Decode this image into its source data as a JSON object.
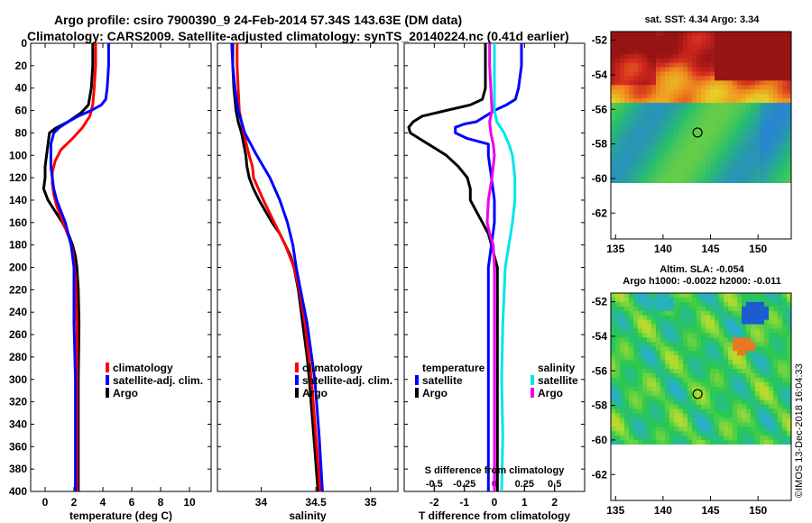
{
  "header": {
    "title_line1": "Argo profile: csiro 7900390_9 24-Feb-2014 57.34S 143.63E (DM data)",
    "title_line2": "Climatology: CARS2009. Satellite-adjusted climatology: synTS_20140224.nc (0.41d earlier)"
  },
  "credit": "©IMOS 13-Dec-2018 16:04:33",
  "colors": {
    "argo": "#000000",
    "climatology": "#ff0000",
    "satellite": "#0000ff",
    "salinity_satellite": "#00e5ee",
    "salinity_argo": "#ee00ee"
  },
  "chart_data": [
    {
      "type": "line",
      "panel": "temperature",
      "xlabel": "temperature (deg C)",
      "ylabel": "",
      "xlim": [
        -1,
        11.5
      ],
      "ylim": [
        400,
        0
      ],
      "xticks": [
        "0",
        "2",
        "4",
        "6",
        "8",
        "10"
      ],
      "xtick_values": [
        0,
        2,
        4,
        6,
        8,
        10
      ],
      "yticks": [
        "0",
        "20",
        "40",
        "60",
        "80",
        "100",
        "120",
        "140",
        "160",
        "180",
        "200",
        "220",
        "240",
        "260",
        "280",
        "300",
        "320",
        "340",
        "360",
        "380",
        "400"
      ],
      "ytick_values": [
        0,
        20,
        40,
        60,
        80,
        100,
        120,
        140,
        160,
        180,
        200,
        220,
        240,
        260,
        280,
        300,
        320,
        340,
        360,
        380,
        400
      ],
      "legend": [
        "climatology",
        "satellite-adj. clim.",
        "Argo"
      ],
      "legend_position": "right-middle",
      "series": [
        {
          "name": "Argo",
          "depth": [
            0,
            20,
            40,
            55,
            62,
            70,
            76,
            80,
            90,
            100,
            110,
            120,
            130,
            140,
            150,
            160,
            170,
            180,
            190,
            200,
            220,
            250,
            300,
            350,
            400
          ],
          "values": [
            3.3,
            3.3,
            3.2,
            3.0,
            2.5,
            1.6,
            0.7,
            0.3,
            0.2,
            0.1,
            0.0,
            0.0,
            -0.1,
            0.2,
            0.7,
            1.2,
            1.6,
            1.9,
            2.1,
            2.2,
            2.3,
            2.35,
            2.3,
            2.3,
            2.3
          ]
        },
        {
          "name": "climatology",
          "depth": [
            0,
            20,
            40,
            55,
            65,
            75,
            85,
            95,
            105,
            115,
            125,
            135,
            145,
            155,
            165,
            175,
            185,
            195,
            210,
            250,
            300,
            350,
            400
          ],
          "values": [
            3.5,
            3.5,
            3.4,
            3.3,
            3.1,
            2.6,
            1.9,
            1.1,
            0.7,
            0.5,
            0.5,
            0.6,
            0.8,
            1.1,
            1.4,
            1.7,
            1.9,
            2.0,
            2.1,
            2.2,
            2.2,
            2.2,
            2.2
          ]
        },
        {
          "name": "satellite-adj. clim.",
          "depth": [
            0,
            20,
            40,
            50,
            55,
            60,
            65,
            70,
            75,
            80,
            90,
            100,
            110,
            120,
            130,
            140,
            150,
            160,
            170,
            180,
            190,
            200,
            250,
            300,
            350,
            400
          ],
          "values": [
            4.4,
            4.4,
            4.3,
            4.2,
            3.9,
            3.2,
            2.3,
            1.6,
            1.0,
            0.6,
            0.4,
            0.4,
            0.4,
            0.5,
            0.6,
            0.8,
            1.1,
            1.4,
            1.6,
            1.8,
            1.9,
            2.0,
            2.0,
            2.1,
            2.1,
            2.1
          ]
        }
      ]
    },
    {
      "type": "line",
      "panel": "salinity",
      "xlabel": "salinity",
      "ylabel": "",
      "xlim": [
        33.6,
        35.25
      ],
      "ylim": [
        400,
        0
      ],
      "xticks": [
        "34",
        "34.5",
        "35"
      ],
      "xtick_values": [
        34,
        34.5,
        35
      ],
      "legend": [
        "climatology",
        "satellite-adj. clim.",
        "Argo"
      ],
      "legend_position": "right-middle",
      "series": [
        {
          "name": "Argo",
          "depth": [
            0,
            20,
            40,
            60,
            70,
            80,
            90,
            100,
            110,
            120,
            130,
            140,
            150,
            160,
            170,
            180,
            190,
            200,
            220,
            250,
            280,
            300,
            350,
            400
          ],
          "values": [
            33.74,
            33.74,
            33.75,
            33.77,
            33.79,
            33.82,
            33.84,
            33.86,
            33.87,
            33.89,
            33.93,
            33.98,
            34.04,
            34.1,
            34.17,
            34.22,
            34.27,
            34.3,
            34.34,
            34.38,
            34.42,
            34.44,
            34.48,
            34.52
          ]
        },
        {
          "name": "climatology",
          "depth": [
            0,
            20,
            40,
            60,
            80,
            100,
            110,
            120,
            140,
            160,
            180,
            200,
            220,
            250,
            300,
            350,
            400
          ],
          "values": [
            33.78,
            33.78,
            33.79,
            33.8,
            33.84,
            33.89,
            33.92,
            33.93,
            34.02,
            34.12,
            34.22,
            34.3,
            34.35,
            34.4,
            34.46,
            34.5,
            34.54
          ]
        },
        {
          "name": "satellite-adj. clim.",
          "depth": [
            0,
            20,
            40,
            60,
            80,
            100,
            110,
            120,
            140,
            160,
            180,
            200,
            220,
            250,
            300,
            350,
            400
          ],
          "values": [
            33.73,
            33.74,
            33.76,
            33.79,
            33.85,
            33.96,
            34.02,
            34.08,
            34.17,
            34.24,
            34.29,
            34.32,
            34.36,
            34.42,
            34.49,
            34.53,
            34.56
          ]
        }
      ]
    },
    {
      "type": "line",
      "panel": "difference",
      "xlabel": "T difference from climatology",
      "secondary_xlabel": "S difference from climatology",
      "xlim": [
        -3,
        3
      ],
      "ylim": [
        400,
        0
      ],
      "xticks": [
        "-2",
        "-1",
        "0",
        "1",
        "2"
      ],
      "xtick_values": [
        -2,
        -1,
        0,
        1,
        2
      ],
      "secondary_xticks": [
        "-0.5",
        "-0.25",
        "0",
        "0.25",
        "0.5"
      ],
      "secondary_xtick_values": [
        -0.5,
        -0.25,
        0,
        0.25,
        0.5
      ],
      "legend_temperature_title": "temperature",
      "legend_salinity_title": "salinity",
      "legend_temperature": [
        "satellite",
        "Argo"
      ],
      "legend_salinity": [
        "satellite",
        "Argo"
      ],
      "series": [
        {
          "name": "temperature Argo",
          "depth": [
            0,
            20,
            40,
            50,
            55,
            60,
            65,
            70,
            75,
            80,
            85,
            90,
            95,
            100,
            110,
            120,
            130,
            140,
            150,
            160,
            170,
            180,
            190,
            200,
            250,
            300,
            350,
            400
          ],
          "values": [
            -0.3,
            -0.3,
            -0.3,
            -0.4,
            -0.8,
            -1.6,
            -2.4,
            -2.7,
            -2.85,
            -2.8,
            -2.5,
            -2.2,
            -1.9,
            -1.6,
            -1.2,
            -0.9,
            -0.8,
            -0.8,
            -0.6,
            -0.4,
            -0.2,
            -0.1,
            0.0,
            0.1,
            0.1,
            0.1,
            0.1,
            0.1
          ]
        },
        {
          "name": "temperature satellite",
          "depth": [
            0,
            20,
            40,
            50,
            55,
            60,
            65,
            70,
            72,
            75,
            80,
            85,
            90,
            100,
            120,
            140,
            160,
            180,
            200,
            250,
            300,
            350,
            400
          ],
          "values": [
            0.9,
            0.9,
            0.8,
            0.7,
            0.4,
            0.0,
            -0.3,
            -0.6,
            -1.0,
            -1.3,
            -1.3,
            -0.9,
            -0.2,
            -0.2,
            -0.1,
            0.0,
            0.0,
            -0.1,
            -0.2,
            -0.2,
            -0.2,
            -0.2,
            -0.2
          ]
        },
        {
          "name": "salinity satellite",
          "depth": [
            0,
            20,
            40,
            60,
            70,
            80,
            90,
            100,
            120,
            140,
            160,
            180,
            200,
            250,
            300,
            350,
            400
          ],
          "values": [
            0.0,
            0.0,
            0.0,
            0.0,
            0.02,
            0.08,
            0.12,
            0.15,
            0.17,
            0.17,
            0.15,
            0.12,
            0.09,
            0.07,
            0.06,
            0.07,
            0.06
          ]
        },
        {
          "name": "salinity Argo",
          "depth": [
            0,
            20,
            40,
            60,
            70,
            80,
            90,
            100,
            120,
            140,
            160,
            170,
            180,
            200,
            250,
            300,
            350,
            400
          ],
          "values": [
            -0.04,
            -0.04,
            -0.03,
            -0.02,
            -0.04,
            -0.03,
            -0.01,
            0.0,
            -0.02,
            -0.05,
            -0.06,
            -0.04,
            -0.01,
            0.0,
            0.0,
            0.0,
            0.0,
            0.0
          ]
        }
      ]
    },
    {
      "type": "heatmap",
      "panel": "map-sst",
      "title": "sat. SST: 4.34 Argo: 3.34",
      "xlim": [
        134.5,
        153.5
      ],
      "ylim": [
        -63.5,
        -51.5
      ],
      "xticks": [
        "135",
        "140",
        "145",
        "150"
      ],
      "xtick_values": [
        135,
        140,
        145,
        150
      ],
      "yticks": [
        "-52",
        "-54",
        "-56",
        "-58",
        "-60",
        "-62"
      ],
      "ytick_values": [
        -52,
        -54,
        -56,
        -58,
        -60,
        -62
      ],
      "float_position": {
        "lon": 143.63,
        "lat": -57.34
      }
    },
    {
      "type": "heatmap",
      "panel": "map-sla",
      "title": "Altim. SLA: -0.054",
      "subtitle": "Argo h1000: -0.0022 h2000: -0.011",
      "xlim": [
        134.5,
        153.5
      ],
      "ylim": [
        -63.5,
        -51.5
      ],
      "xticks": [
        "135",
        "140",
        "145",
        "150"
      ],
      "xtick_values": [
        135,
        140,
        145,
        150
      ],
      "yticks": [
        "-52",
        "-54",
        "-56",
        "-58",
        "-60",
        "-62"
      ],
      "ytick_values": [
        -52,
        -54,
        -56,
        -58,
        -60,
        -62
      ],
      "float_position": {
        "lon": 143.63,
        "lat": -57.34
      }
    }
  ]
}
